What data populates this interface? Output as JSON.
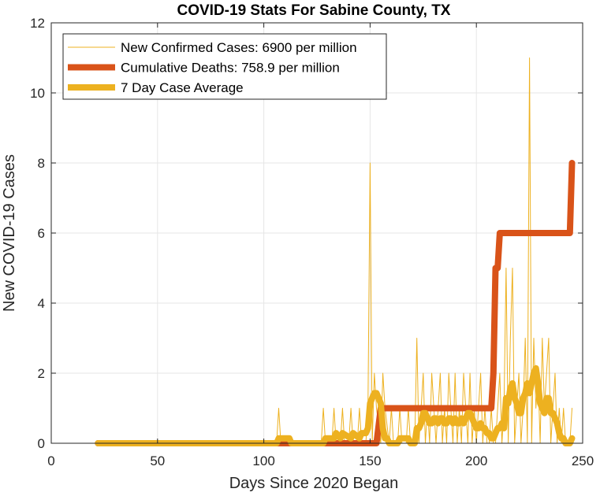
{
  "chart_data": {
    "type": "line",
    "title": "COVID-19 Stats For Sabine County, TX",
    "xlabel": "Days Since 2020 Began",
    "ylabel": "New COVID-19 Cases",
    "xlim": [
      0,
      250
    ],
    "ylim": [
      0,
      12
    ],
    "xticks": [
      0,
      50,
      100,
      150,
      200,
      250
    ],
    "yticks": [
      0,
      2,
      4,
      6,
      8,
      10,
      12
    ],
    "grid": true,
    "legend_position": "top-left",
    "series": [
      {
        "name": "New Confirmed Cases: 6900 per million",
        "color": "#EDB120",
        "style": "thin",
        "x": [
          22,
          106,
          107,
          108,
          127,
          128,
          129,
          132,
          133,
          134,
          136,
          137,
          138,
          140,
          141,
          142,
          144,
          145,
          146,
          148,
          149,
          150,
          151,
          152,
          153,
          155,
          156,
          157,
          159,
          160,
          161,
          163,
          164,
          165,
          167,
          168,
          169,
          171,
          172,
          173,
          174,
          175,
          176,
          177,
          178,
          179,
          180,
          181,
          182,
          183,
          184,
          185,
          186,
          187,
          188,
          189,
          190,
          191,
          192,
          193,
          194,
          195,
          196,
          197,
          198,
          199,
          200,
          201,
          202,
          203,
          204,
          205,
          206,
          207,
          208,
          209,
          210,
          211,
          212,
          213,
          214,
          215,
          216,
          217,
          218,
          219,
          220,
          221,
          222,
          223,
          224,
          225,
          226,
          227,
          228,
          229,
          230,
          231,
          232,
          233,
          234,
          235,
          236,
          237,
          238,
          239,
          240,
          241,
          242,
          243,
          244,
          245
        ],
        "y": [
          0,
          0,
          1,
          0,
          0,
          1,
          0,
          0,
          1,
          0,
          0,
          1,
          0,
          0,
          1,
          0,
          0,
          1,
          0,
          0,
          1,
          8,
          0,
          2,
          1,
          0,
          2,
          1,
          0,
          1,
          0,
          0,
          1,
          0,
          0,
          1,
          0,
          0,
          3,
          0,
          1,
          2,
          0,
          1,
          0,
          2,
          1,
          0,
          1,
          2,
          0,
          1,
          0,
          2,
          1,
          0,
          2,
          0,
          1,
          0,
          2,
          1,
          0,
          2,
          0,
          1,
          0,
          1,
          2,
          0,
          1,
          0,
          0,
          1,
          0,
          0,
          1,
          2,
          0,
          1,
          5,
          0,
          3,
          5,
          0,
          1,
          2,
          0,
          1,
          3,
          0,
          11,
          0,
          3,
          1,
          2,
          0,
          3,
          1,
          2,
          3,
          0,
          1,
          2,
          0,
          1,
          0,
          1,
          0,
          0,
          0,
          1
        ]
      },
      {
        "name": "Cumulative Deaths: 758.9 per million",
        "color": "#D95319",
        "style": "thick",
        "x": [
          22,
          153,
          154,
          155,
          207,
          208,
          209,
          210,
          211,
          212,
          244,
          245
        ],
        "y": [
          0,
          0,
          0.5,
          1,
          1,
          2,
          5,
          5,
          6,
          6,
          6,
          8
        ]
      },
      {
        "name": "7 Day Case Average",
        "color": "#EDB120",
        "style": "thick",
        "x": [
          22,
          106,
          107,
          112,
          113,
          128,
          129,
          133,
          134,
          136,
          137,
          141,
          142,
          145,
          146,
          148,
          149,
          150,
          151,
          152,
          153,
          154,
          155,
          156,
          157,
          158,
          159,
          163,
          164,
          168,
          169,
          171,
          172,
          173,
          174,
          175,
          176,
          177,
          178,
          179,
          180,
          181,
          182,
          183,
          184,
          185,
          186,
          187,
          188,
          189,
          190,
          191,
          192,
          193,
          194,
          195,
          196,
          197,
          198,
          199,
          200,
          201,
          202,
          203,
          204,
          205,
          206,
          207,
          208,
          209,
          210,
          211,
          212,
          213,
          214,
          215,
          216,
          217,
          218,
          219,
          220,
          221,
          222,
          223,
          224,
          225,
          226,
          227,
          228,
          229,
          230,
          231,
          232,
          233,
          234,
          235,
          236,
          237,
          238,
          239,
          240,
          241,
          242,
          243,
          244,
          245
        ],
        "y": [
          0,
          0,
          0.14,
          0.14,
          0,
          0,
          0.14,
          0.14,
          0.29,
          0.14,
          0.29,
          0.14,
          0.29,
          0.14,
          0.29,
          0.29,
          0.43,
          1.14,
          1.29,
          1.43,
          1.43,
          1.29,
          1.14,
          0.43,
          0.14,
          0.14,
          0,
          0,
          0.14,
          0.14,
          0,
          0,
          0.43,
          0.43,
          0.57,
          0.86,
          0.86,
          0.71,
          0.57,
          0.57,
          0.71,
          0.71,
          0.57,
          0.71,
          0.71,
          0.57,
          0.57,
          0.71,
          0.71,
          0.57,
          0.71,
          0.57,
          0.57,
          0.71,
          0.57,
          0.71,
          0.86,
          0.86,
          0.71,
          0.57,
          0.43,
          0.43,
          0.57,
          0.43,
          0.43,
          0.29,
          0.29,
          0.14,
          0.14,
          0.29,
          0.43,
          0.43,
          0.57,
          0.43,
          1.29,
          1.14,
          1.57,
          1.71,
          1.29,
          1.14,
          0.86,
          0.86,
          1.29,
          1.43,
          1.71,
          1.43,
          1.71,
          2.0,
          2.14,
          1.71,
          1.14,
          1.0,
          0.86,
          1.29,
          1.29,
          0.86,
          0.86,
          0.71,
          0.57,
          0.29,
          0.14,
          0.14,
          0,
          0,
          0,
          0.14
        ]
      }
    ]
  }
}
